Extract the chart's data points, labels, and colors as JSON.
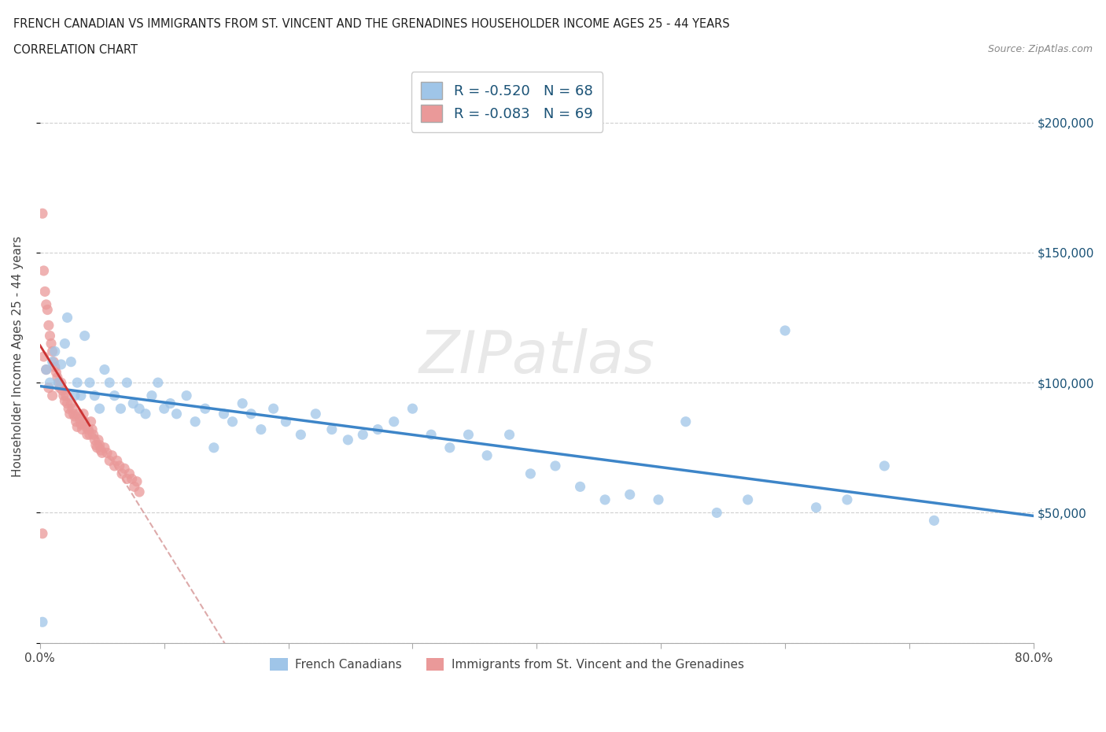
{
  "title_line1": "FRENCH CANADIAN VS IMMIGRANTS FROM ST. VINCENT AND THE GRENADINES HOUSEHOLDER INCOME AGES 25 - 44 YEARS",
  "title_line2": "CORRELATION CHART",
  "source": "Source: ZipAtlas.com",
  "ylabel": "Householder Income Ages 25 - 44 years",
  "xlim": [
    0.0,
    0.8
  ],
  "ylim": [
    0,
    220000
  ],
  "xticks": [
    0.0,
    0.1,
    0.2,
    0.3,
    0.4,
    0.5,
    0.6,
    0.7,
    0.8
  ],
  "xticklabels": [
    "0.0%",
    "",
    "",
    "",
    "",
    "",
    "",
    "",
    "80.0%"
  ],
  "yticks": [
    0,
    50000,
    100000,
    150000,
    200000
  ],
  "yticklabels": [
    "",
    "$50,000",
    "$100,000",
    "$150,000",
    "$200,000"
  ],
  "blue_R": -0.52,
  "blue_N": 68,
  "pink_R": -0.083,
  "pink_N": 69,
  "blue_color": "#9fc5e8",
  "pink_color": "#ea9999",
  "blue_line_color": "#3d85c8",
  "pink_line_color": "#cc3333",
  "pink_dash_color": "#ddaaaa",
  "watermark": "ZIPatlas",
  "legend_label_blue": "French Canadians",
  "legend_label_pink": "Immigrants from St. Vincent and the Grenadines",
  "blue_x": [
    0.005,
    0.008,
    0.01,
    0.012,
    0.015,
    0.017,
    0.02,
    0.022,
    0.025,
    0.028,
    0.03,
    0.033,
    0.036,
    0.04,
    0.044,
    0.048,
    0.052,
    0.056,
    0.06,
    0.065,
    0.07,
    0.075,
    0.08,
    0.085,
    0.09,
    0.095,
    0.1,
    0.105,
    0.11,
    0.118,
    0.125,
    0.133,
    0.14,
    0.148,
    0.155,
    0.163,
    0.17,
    0.178,
    0.188,
    0.198,
    0.21,
    0.222,
    0.235,
    0.248,
    0.26,
    0.272,
    0.285,
    0.3,
    0.315,
    0.33,
    0.345,
    0.36,
    0.378,
    0.395,
    0.415,
    0.435,
    0.455,
    0.475,
    0.498,
    0.52,
    0.545,
    0.57,
    0.6,
    0.625,
    0.65,
    0.68,
    0.72,
    0.002
  ],
  "blue_y": [
    105000,
    100000,
    108000,
    112000,
    100000,
    107000,
    115000,
    125000,
    108000,
    95000,
    100000,
    95000,
    118000,
    100000,
    95000,
    90000,
    105000,
    100000,
    95000,
    90000,
    100000,
    92000,
    90000,
    88000,
    95000,
    100000,
    90000,
    92000,
    88000,
    95000,
    85000,
    90000,
    75000,
    88000,
    85000,
    92000,
    88000,
    82000,
    90000,
    85000,
    80000,
    88000,
    82000,
    78000,
    80000,
    82000,
    85000,
    90000,
    80000,
    75000,
    80000,
    72000,
    80000,
    65000,
    68000,
    60000,
    55000,
    57000,
    55000,
    85000,
    50000,
    55000,
    120000,
    52000,
    55000,
    68000,
    47000,
    8000
  ],
  "pink_x": [
    0.002,
    0.003,
    0.004,
    0.005,
    0.006,
    0.007,
    0.008,
    0.009,
    0.01,
    0.011,
    0.012,
    0.013,
    0.014,
    0.015,
    0.016,
    0.017,
    0.018,
    0.019,
    0.02,
    0.021,
    0.022,
    0.023,
    0.024,
    0.025,
    0.026,
    0.027,
    0.028,
    0.029,
    0.03,
    0.031,
    0.032,
    0.033,
    0.034,
    0.035,
    0.036,
    0.037,
    0.038,
    0.039,
    0.04,
    0.041,
    0.042,
    0.043,
    0.044,
    0.045,
    0.046,
    0.047,
    0.048,
    0.049,
    0.05,
    0.052,
    0.054,
    0.056,
    0.058,
    0.06,
    0.062,
    0.064,
    0.066,
    0.068,
    0.07,
    0.072,
    0.074,
    0.076,
    0.078,
    0.08,
    0.003,
    0.005,
    0.007,
    0.01,
    0.002
  ],
  "pink_y": [
    165000,
    143000,
    135000,
    130000,
    128000,
    122000,
    118000,
    115000,
    112000,
    108000,
    106000,
    104000,
    102000,
    100000,
    98000,
    100000,
    97000,
    95000,
    93000,
    95000,
    92000,
    90000,
    88000,
    92000,
    90000,
    88000,
    87000,
    85000,
    83000,
    88000,
    86000,
    84000,
    82000,
    88000,
    85000,
    83000,
    80000,
    82000,
    80000,
    85000,
    82000,
    80000,
    78000,
    76000,
    75000,
    78000,
    76000,
    74000,
    73000,
    75000,
    73000,
    70000,
    72000,
    68000,
    70000,
    68000,
    65000,
    67000,
    63000,
    65000,
    63000,
    60000,
    62000,
    58000,
    110000,
    105000,
    98000,
    95000,
    42000
  ]
}
